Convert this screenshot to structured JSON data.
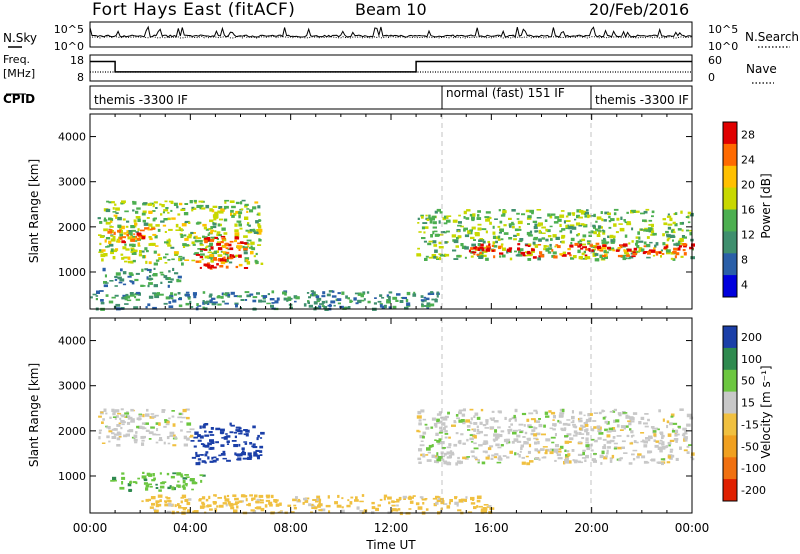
{
  "header": {
    "station": "Fort Hays East (fitACF)",
    "beam": "Beam 10",
    "date": "20/Feb/2016"
  },
  "noise_panel": {
    "left_label": "N.Sky",
    "right_label": "N.Search",
    "left_ticks": [
      "10^5",
      "10^0"
    ],
    "right_ticks": [
      "10^5",
      "10^0"
    ]
  },
  "freq_panel": {
    "left_label_line1": "Freq.",
    "left_label_line2": "[MHz]",
    "right_label": "Nave",
    "left_ticks": [
      "18",
      "8"
    ],
    "right_ticks": [
      "60",
      "0"
    ],
    "freq_segments": [
      {
        "start_hour": 0.0,
        "end_hour": 1.0,
        "freq_mhz": 15.5
      },
      {
        "start_hour": 1.0,
        "end_hour": 13.0,
        "freq_mhz": 11.5
      },
      {
        "start_hour": 13.0,
        "end_hour": 24.0,
        "freq_mhz": 15.5
      }
    ]
  },
  "cpid_panel": {
    "label": "CPID",
    "segments": [
      {
        "name": "themis -3300 IF",
        "start_hour": 0.0,
        "end_hour": 14.0
      },
      {
        "name": "normal (fast) 151 IF",
        "start_hour": 14.0,
        "end_hour": 20.0
      },
      {
        "name": "themis -3300 IF",
        "start_hour": 20.0,
        "end_hour": 24.0
      }
    ]
  },
  "power_panel": {
    "ylabel": "Slant Range [km]",
    "yticks": [
      "1000",
      "2000",
      "3000",
      "4000"
    ],
    "colorbar_label": "Power [dB]",
    "colorbar_ticks": [
      "28",
      "24",
      "20",
      "16",
      "12",
      "8",
      "4"
    ],
    "colors": [
      "#e00000",
      "#ff6a00",
      "#ffc000",
      "#c8d800",
      "#4caf50",
      "#3f8f6e",
      "#2a5fa8",
      "#0000dd"
    ]
  },
  "velocity_panel": {
    "ylabel": "Slant Range [km]",
    "yticks": [
      "1000",
      "2000",
      "3000",
      "4000"
    ],
    "colorbar_label": "Velocity [m s⁻¹]",
    "colorbar_ticks": [
      "200",
      "100",
      "50",
      "15",
      "-15",
      "-50",
      "-100",
      "-200"
    ],
    "colors": [
      "#1b3fa8",
      "#2f8a4f",
      "#6cc640",
      "#c8c8c8",
      "#f0c040",
      "#f0a020",
      "#f07010",
      "#e02000"
    ]
  },
  "time_axis": {
    "xlabel": "Time UT",
    "ticks": [
      "00:00",
      "04:00",
      "08:00",
      "12:00",
      "16:00",
      "20:00",
      "00:00"
    ]
  },
  "chart_data": {
    "type": "heatmap",
    "title": "Fort Hays East (fitACF)  Beam 10  20/Feb/2016",
    "xlabel": "Time UT",
    "ylabel": "Slant Range [km]",
    "xlim_hours": [
      0,
      24
    ],
    "ylim_km": [
      180,
      4500
    ],
    "grid": false,
    "power_regions": [
      {
        "t0": 0.3,
        "t1": 6.8,
        "r0": 1200,
        "r1": 2600,
        "level_db": 14
      },
      {
        "t0": 0.5,
        "t1": 2.5,
        "r0": 1600,
        "r1": 2000,
        "level_db": 24
      },
      {
        "t0": 4.2,
        "t1": 6.2,
        "r0": 1100,
        "r1": 1800,
        "level_db": 26
      },
      {
        "t0": 0.5,
        "t1": 3.5,
        "r0": 700,
        "r1": 1100,
        "level_db": 9
      },
      {
        "t0": 0.0,
        "t1": 14.0,
        "r0": 200,
        "r1": 600,
        "level_db": 8
      },
      {
        "t0": 13.0,
        "t1": 24.0,
        "r0": 1300,
        "r1": 2400,
        "level_db": 13
      },
      {
        "t0": 15.0,
        "t1": 24.0,
        "r0": 1350,
        "r1": 1650,
        "level_db": 26
      }
    ],
    "velocity_regions": [
      {
        "t0": 0.3,
        "t1": 4.0,
        "r0": 1700,
        "r1": 2500,
        "velocity": 0
      },
      {
        "t0": 4.0,
        "t1": 6.8,
        "r0": 1300,
        "r1": 2200,
        "velocity": 150
      },
      {
        "t0": 0.8,
        "t1": 4.5,
        "r0": 700,
        "r1": 1100,
        "velocity": 40
      },
      {
        "t0": 2.0,
        "t1": 16.0,
        "r0": 200,
        "r1": 600,
        "velocity": -30
      },
      {
        "t0": 13.0,
        "t1": 24.0,
        "r0": 1300,
        "r1": 2500,
        "velocity": 0
      }
    ]
  }
}
